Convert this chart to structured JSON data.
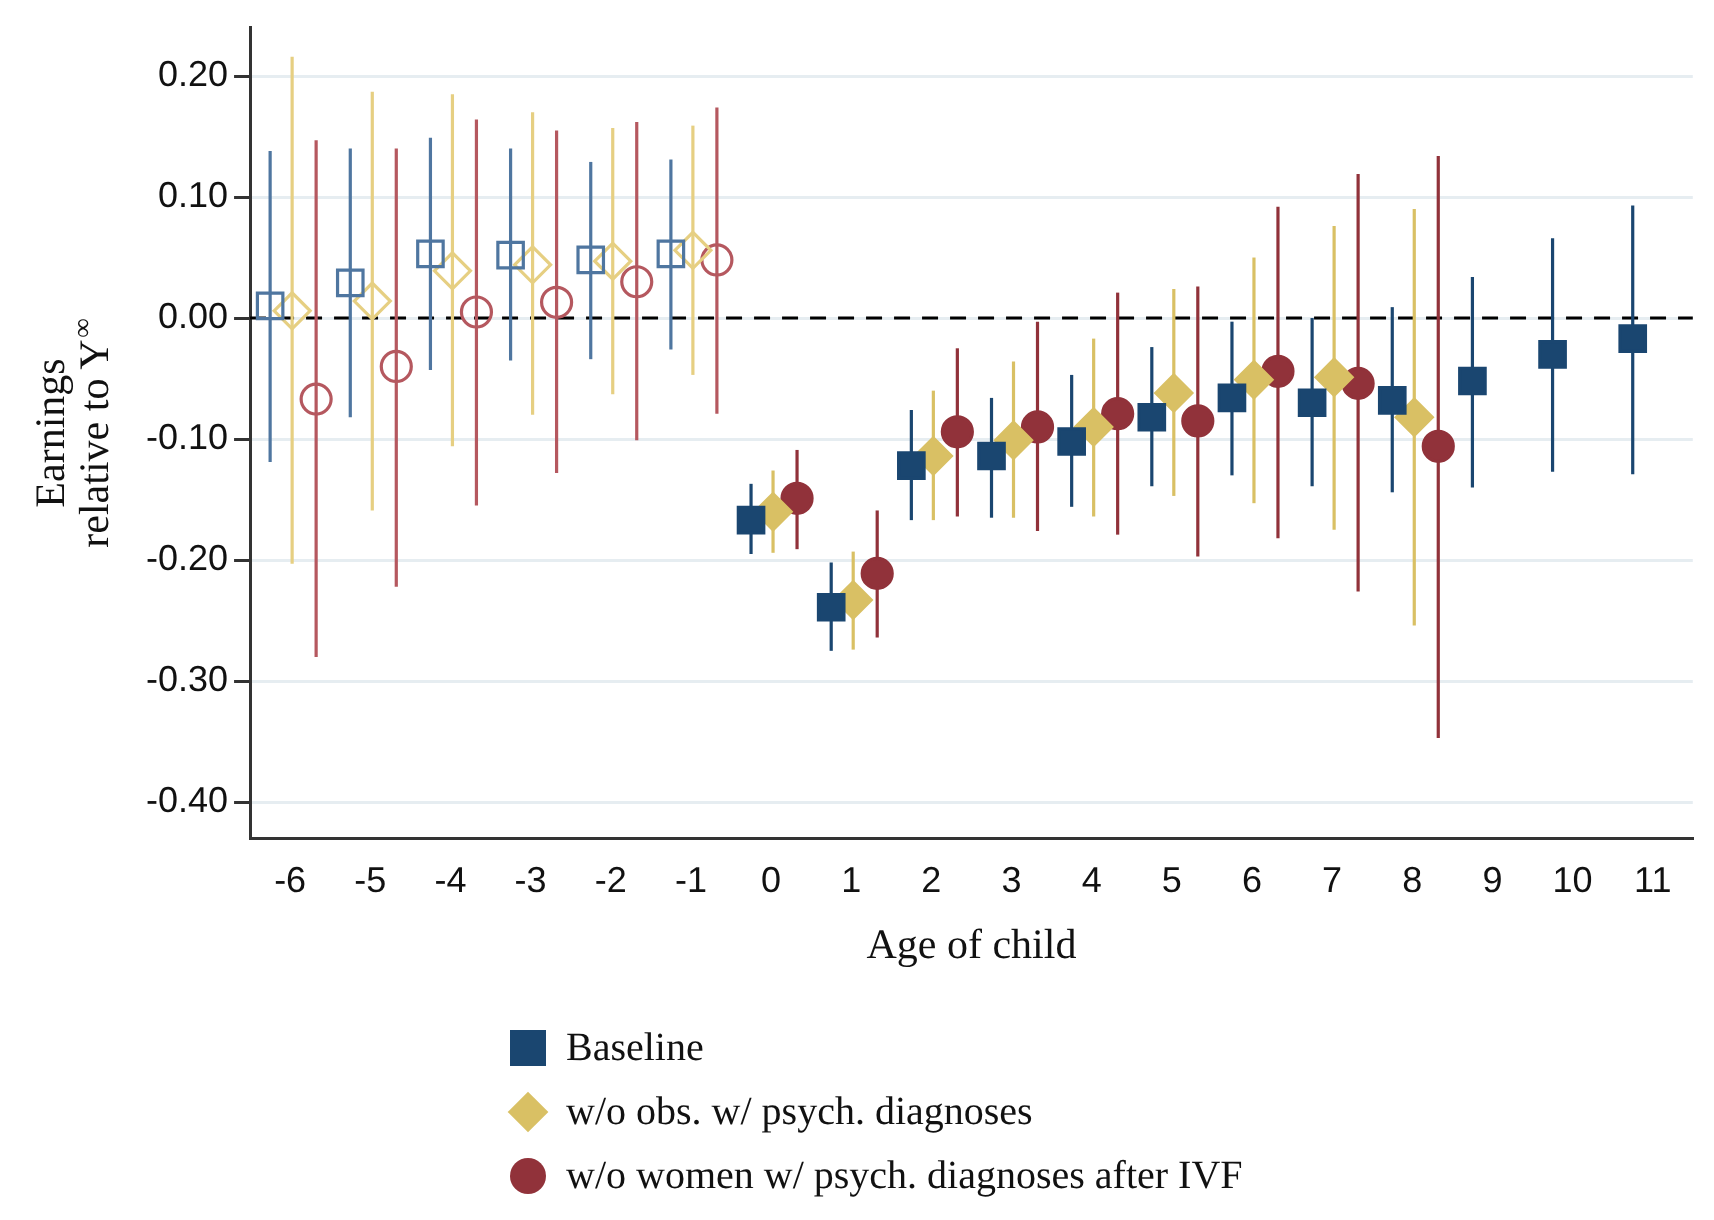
{
  "chart_data": {
    "type": "scatter",
    "xlabel": "Age of child",
    "ylabel": "Earnings\nrelative to Y$^{∞}$",
    "categories": [
      "-6",
      "-5",
      "-4",
      "-3",
      "-2",
      "-1",
      "0",
      "1",
      "2",
      "3",
      "4",
      "5",
      "6",
      "7",
      "8",
      "9",
      "10",
      "11"
    ],
    "ylim": [
      -0.43,
      0.24
    ],
    "yticks": [
      {
        "value": 0.2,
        "label": "0.20"
      },
      {
        "value": 0.1,
        "label": "0.10"
      },
      {
        "value": 0,
        "label": "0.00"
      },
      {
        "value": -0.1,
        "label": "-0.10"
      },
      {
        "value": -0.2,
        "label": "-0.20"
      },
      {
        "value": -0.3,
        "label": "-0.30"
      },
      {
        "value": -0.4,
        "label": "-0.40"
      }
    ],
    "grid": "y",
    "legend": "bottom",
    "ref_lines": [
      {
        "axis": "y",
        "value": 0,
        "color": "#000000",
        "line_style": "dashed"
      }
    ],
    "series": [
      {
        "color": "#4f76a0",
        "marker": "square",
        "values": [
          0.01,
          0.029,
          0.053,
          0.052,
          0.048,
          0.053,
          null,
          null,
          null,
          null,
          null,
          null,
          null,
          null,
          null,
          null,
          null,
          null
        ],
        "errors": [
          [
            -0.119,
            0.138
          ],
          [
            -0.082,
            0.14
          ],
          [
            -0.043,
            0.149
          ],
          [
            -0.035,
            0.14
          ],
          [
            -0.034,
            0.129
          ],
          [
            -0.026,
            0.131
          ],
          null,
          null,
          null,
          null,
          null,
          null,
          null,
          null,
          null,
          null,
          null,
          null
        ]
      },
      {
        "color": "#e6cf82",
        "marker": "diamond",
        "values": [
          0.006,
          0.014,
          0.039,
          0.044,
          0.047,
          0.056,
          null,
          null,
          null,
          null,
          null,
          null,
          null,
          null,
          null,
          null,
          null,
          null
        ],
        "errors": [
          [
            -0.203,
            0.216
          ],
          [
            -0.159,
            0.187
          ],
          [
            -0.106,
            0.185
          ],
          [
            -0.08,
            0.17
          ],
          [
            -0.063,
            0.157
          ],
          [
            -0.047,
            0.159
          ],
          null,
          null,
          null,
          null,
          null,
          null,
          null,
          null,
          null,
          null,
          null,
          null
        ]
      },
      {
        "color": "#b5585f",
        "marker": "circle",
        "values": [
          -0.067,
          -0.04,
          0.005,
          0.013,
          0.03,
          0.048,
          null,
          null,
          null,
          null,
          null,
          null,
          null,
          null,
          null,
          null,
          null,
          null
        ],
        "errors": [
          [
            -0.28,
            0.147
          ],
          [
            -0.222,
            0.14
          ],
          [
            -0.155,
            0.164
          ],
          [
            -0.128,
            0.155
          ],
          [
            -0.101,
            0.162
          ],
          [
            -0.079,
            0.174
          ],
          null,
          null,
          null,
          null,
          null,
          null,
          null,
          null,
          null,
          null,
          null,
          null
        ]
      },
      {
        "name": "Baseline",
        "color": "#1a4670",
        "marker": "square",
        "values": [
          null,
          null,
          null,
          null,
          null,
          null,
          -0.167,
          -0.239,
          -0.122,
          -0.114,
          -0.102,
          -0.082,
          -0.066,
          -0.07,
          -0.068,
          -0.052,
          -0.03,
          -0.017
        ],
        "errors": [
          null,
          null,
          null,
          null,
          null,
          null,
          [
            -0.195,
            -0.137
          ],
          [
            -0.275,
            -0.202
          ],
          [
            -0.167,
            -0.076
          ],
          [
            -0.165,
            -0.066
          ],
          [
            -0.156,
            -0.047
          ],
          [
            -0.139,
            -0.024
          ],
          [
            -0.13,
            -0.003
          ],
          [
            -0.139,
            0.0
          ],
          [
            -0.144,
            0.009
          ],
          [
            -0.14,
            0.034
          ],
          [
            -0.127,
            0.066
          ],
          [
            -0.129,
            0.093
          ]
        ]
      },
      {
        "name": "w/o obs. w/ psych. diagnoses",
        "color": "#d9c064",
        "marker": "diamond",
        "values": [
          null,
          null,
          null,
          null,
          null,
          null,
          -0.16,
          -0.233,
          -0.114,
          -0.101,
          -0.09,
          -0.062,
          -0.051,
          -0.049,
          -0.082,
          null,
          null,
          null
        ],
        "errors": [
          null,
          null,
          null,
          null,
          null,
          null,
          [
            -0.194,
            -0.126
          ],
          [
            -0.274,
            -0.193
          ],
          [
            -0.167,
            -0.06
          ],
          [
            -0.165,
            -0.036
          ],
          [
            -0.164,
            -0.017
          ],
          [
            -0.147,
            0.024
          ],
          [
            -0.153,
            0.05
          ],
          [
            -0.175,
            0.076
          ],
          [
            -0.254,
            0.09
          ],
          null,
          null,
          null
        ]
      },
      {
        "name": "w/o women w/ psych. diagnoses after IVF",
        "color": "#91323a",
        "marker": "circle",
        "values": [
          null,
          null,
          null,
          null,
          null,
          null,
          -0.149,
          -0.211,
          -0.094,
          -0.09,
          -0.079,
          -0.085,
          -0.044,
          -0.054,
          -0.106,
          null,
          null,
          null
        ],
        "errors": [
          null,
          null,
          null,
          null,
          null,
          null,
          [
            -0.191,
            -0.109
          ],
          [
            -0.264,
            -0.159
          ],
          [
            -0.164,
            -0.025
          ],
          [
            -0.176,
            -0.003
          ],
          [
            -0.179,
            0.021
          ],
          [
            -0.197,
            0.026
          ],
          [
            -0.182,
            0.092
          ],
          [
            -0.226,
            0.119
          ],
          [
            -0.347,
            0.134
          ],
          null,
          null,
          null
        ]
      }
    ]
  }
}
